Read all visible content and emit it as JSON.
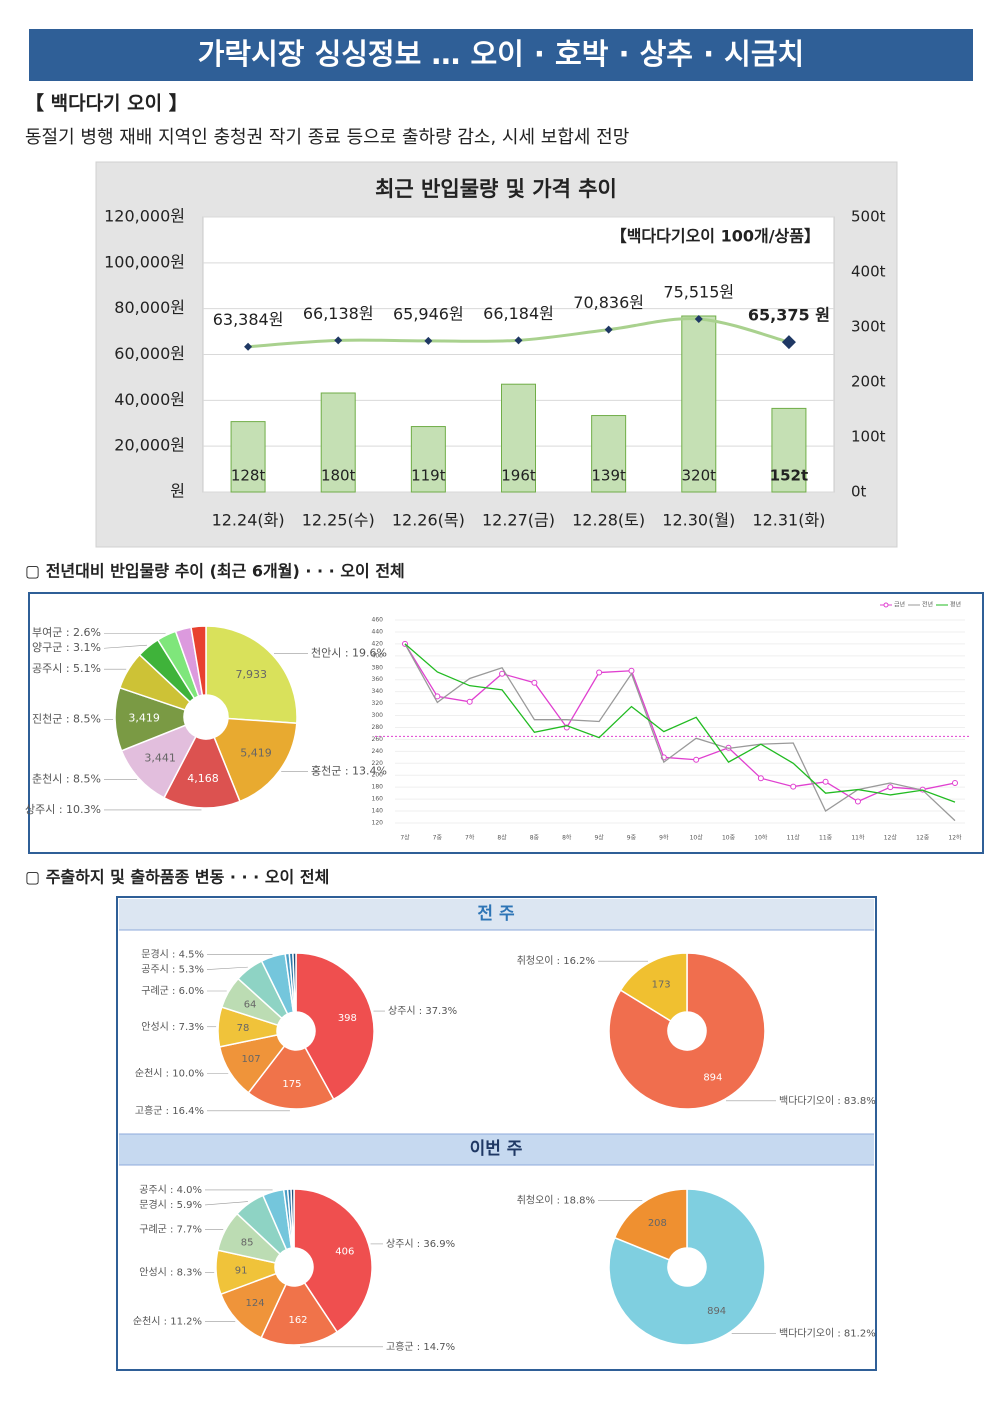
{
  "header": {
    "title": "가락시장 싱싱정보 … 오이 · 호박 · 상추 · 시금치"
  },
  "section1": {
    "heading": "【 백다다기 오이 】",
    "text": "동절기 병행 재배 지역인 충청권 작기 종료 등으로 출하량 감소, 시세 보합세 전망"
  },
  "section2": {
    "heading": "▢ 전년대비 반입물량 추이 (최근 6개월) · · · 오이 전체"
  },
  "section3": {
    "heading": "▢ 주출하지 및 출하품종 변동 · · · 오이 전체",
    "previous_week": "전 주",
    "this_week": "이번 주"
  },
  "chart_data": [
    {
      "type": "bar",
      "title": "최근 반입물량 및 가격 추이",
      "annotation": "【백다다기오이 100개/상품】",
      "categories": [
        "12.24(화)",
        "12.25(수)",
        "12.26(목)",
        "12.27(금)",
        "12.28(토)",
        "12.30(월)",
        "12.31(화)"
      ],
      "series": [
        {
          "type": "bar",
          "axis": "y2",
          "color": "#c5e0b4",
          "edge_color": "#70ad47",
          "values": [
            128,
            180,
            119,
            196,
            139,
            320,
            152
          ],
          "value_labels": [
            "128t",
            "180t",
            "119t",
            "196t",
            "139t",
            "320t",
            "152t"
          ]
        },
        {
          "type": "line",
          "color": "#a9d18e",
          "marker_color": "#1f3864",
          "values": [
            63384,
            66138,
            65946,
            66184,
            70836,
            75515,
            65375
          ],
          "value_labels": [
            "63,384원",
            "66,138원",
            "65,946원",
            "66,184원",
            "70,836원",
            "75,515원",
            "65,375 원"
          ]
        }
      ],
      "ylim": [
        0,
        120000
      ],
      "yticks": [
        {
          "value": 0,
          "label": "원"
        },
        {
          "value": 20000,
          "label": "20,000원"
        },
        {
          "value": 40000,
          "label": "40,000원"
        },
        {
          "value": 60000,
          "label": "60,000원"
        },
        {
          "value": 80000,
          "label": "80,000원"
        },
        {
          "value": 100000,
          "label": "100,000원"
        },
        {
          "value": 120000,
          "label": "120,000원"
        }
      ],
      "y2lim": [
        0,
        500
      ],
      "y2ticks": [
        {
          "value": 0,
          "label": "0t"
        },
        {
          "value": 100,
          "label": "100t"
        },
        {
          "value": 200,
          "label": "200t"
        },
        {
          "value": 300,
          "label": "300t"
        },
        {
          "value": 400,
          "label": "400t"
        },
        {
          "value": 500,
          "label": "500t"
        }
      ],
      "grid": true
    },
    {
      "type": "donut",
      "categories": [
        "천안시 : 19.6%",
        "홍천군 : 13.4%",
        "상주시 : 10.3%",
        "춘천시 : 8.5%",
        "진천군 : 8.5%",
        "공주시 : 5.1%",
        "양구군 : 3.1%",
        "부여군 : 2.6%",
        null,
        null
      ],
      "values": [
        7933,
        5419,
        4168,
        3441,
        3419,
        2064,
        1255,
        1052,
        850,
        800
      ],
      "value_labels": [
        "7,933",
        "5,419",
        "4,168",
        "3,441",
        "3,419",
        null,
        null,
        null,
        null,
        null
      ],
      "colors": [
        "#d9e15b",
        "#e8aa30",
        "#dc5250",
        "#e2bedd",
        "#7a9a44",
        "#cdc236",
        "#3fb33a",
        "#7fe67b",
        "#dc9ade",
        "#e8412f"
      ]
    },
    {
      "type": "line",
      "categories": [
        "7상",
        "7중",
        "7하",
        "8상",
        "8중",
        "8하",
        "9상",
        "9중",
        "9하",
        "10상",
        "10중",
        "10하",
        "11상",
        "11중",
        "11하",
        "12상",
        "12중",
        "12하"
      ],
      "series": [
        {
          "name": "금년",
          "color": "#e040d0",
          "markers": true,
          "values": [
            420,
            332,
            323,
            370,
            355,
            280,
            372,
            375,
            230,
            226,
            246,
            195,
            181,
            189,
            156,
            180,
            176,
            187
          ]
        },
        {
          "name": "전년",
          "color": "#9a9a9a",
          "markers": false,
          "values": [
            420,
            322,
            362,
            380,
            293,
            293,
            290,
            370,
            222,
            262,
            245,
            252,
            254,
            140,
            176,
            187,
            175,
            124
          ]
        },
        {
          "name": "평년",
          "color": "#22bb22",
          "markers": false,
          "values": [
            420,
            373,
            350,
            343,
            272,
            283,
            263,
            315,
            273,
            297,
            222,
            252,
            220,
            170,
            176,
            167,
            175,
            155
          ]
        }
      ],
      "reference_line": 265,
      "reference_color": "#e040d0",
      "ylim": [
        120,
        460
      ],
      "yticks": [
        120,
        140,
        160,
        180,
        200,
        220,
        240,
        260,
        280,
        300,
        320,
        340,
        360,
        380,
        400,
        420,
        440,
        460
      ],
      "grid": true,
      "legend": "top-right"
    },
    {
      "type": "donut",
      "categories": [
        "상주시 : 37.3%",
        "고흥군 : 16.4%",
        "순천시 : 10.0%",
        "안성시 : 7.3%",
        "구례군 : 6.0%",
        "공주시 : 5.3%",
        "문경시 : 4.5%",
        null,
        null,
        null
      ],
      "values": [
        398,
        175,
        107,
        78,
        64,
        57,
        48,
        8,
        7,
        6
      ],
      "value_labels": [
        "398",
        "175",
        "107",
        "78",
        "64",
        null,
        null,
        null,
        null,
        null
      ],
      "colors": [
        "#ef4f4f",
        "#f0734a",
        "#ef943a",
        "#f0c33a",
        "#bcdcb3",
        "#8ed3c4",
        "#74c6dc",
        "#4b9fc6",
        "#2c77a8",
        "#1f4e79"
      ]
    },
    {
      "type": "donut",
      "categories": [
        "백다다기오이 : 83.8%",
        "취청오이 : 16.2%"
      ],
      "values": [
        894,
        173
      ],
      "value_labels": [
        "894",
        "173"
      ],
      "colors": [
        "#f06e4e",
        "#f0c030"
      ]
    },
    {
      "type": "donut",
      "categories": [
        "상주시 : 36.9%",
        "고흥군 : 14.7%",
        "순천시 : 11.2%",
        "안성시 : 8.3%",
        "구례군 : 7.7%",
        "문경시 : 5.9%",
        "공주시 : 4.0%",
        null,
        null,
        null
      ],
      "values": [
        406,
        162,
        124,
        91,
        85,
        65,
        44,
        8,
        7,
        6
      ],
      "value_labels": [
        "406",
        "162",
        "124",
        "91",
        "85",
        null,
        null,
        null,
        null,
        null
      ],
      "colors": [
        "#ef4f4f",
        "#f0734a",
        "#ef943a",
        "#f0c33a",
        "#bcdcb3",
        "#8ed3c4",
        "#74c6dc",
        "#4b9fc6",
        "#2c77a8",
        "#1f4e79"
      ]
    },
    {
      "type": "donut",
      "categories": [
        "백다다기오이 : 81.2%",
        "취청오이 : 18.8%"
      ],
      "values": [
        894,
        208
      ],
      "value_labels": [
        "894",
        "208"
      ],
      "colors": [
        "#7fcfe0",
        "#ef9030"
      ]
    }
  ]
}
